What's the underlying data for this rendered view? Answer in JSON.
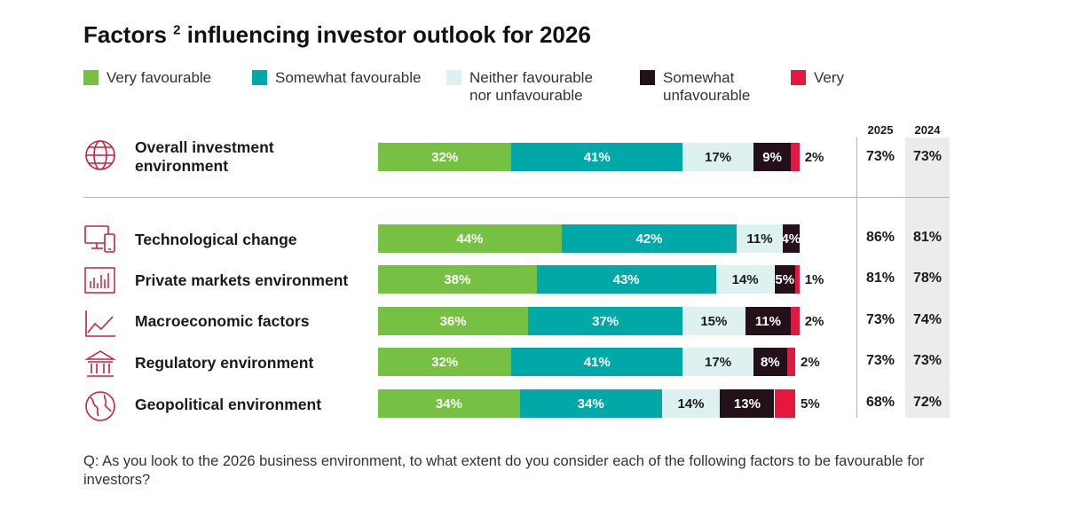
{
  "title": {
    "main": "Factors",
    "sup": "2",
    "rest": "influencing investor outlook for 2026"
  },
  "legend": [
    {
      "label": "Very favourable",
      "color": "#76c043"
    },
    {
      "label": "Somewhat favourable",
      "color": "#00a9a7"
    },
    {
      "label": "Neither favourable\nnor unfavourable",
      "color": "#ddf1f1"
    },
    {
      "label": "Somewhat\nunfavourable",
      "color": "#231018"
    },
    {
      "label": "Very",
      "color": "#e5173f"
    }
  ],
  "column_headers": {
    "y2025": "2025",
    "y2024": "2024"
  },
  "rows": [
    {
      "label": "Overall investment\nenvironment",
      "icon": "globe-icon",
      "y2025": "73%",
      "y2024": "73%"
    },
    {
      "label": "Technological change",
      "icon": "devices-icon",
      "y2025": "86%",
      "y2024": "81%"
    },
    {
      "label": "Private markets environment",
      "icon": "bar-chart-icon",
      "y2025": "81%",
      "y2024": "78%"
    },
    {
      "label": "Macroeconomic factors",
      "icon": "line-chart-icon",
      "y2025": "73%",
      "y2024": "74%"
    },
    {
      "label": "Regulatory environment",
      "icon": "bank-icon",
      "y2025": "73%",
      "y2024": "73%"
    },
    {
      "label": "Geopolitical environment",
      "icon": "world-map-icon",
      "y2025": "68%",
      "y2024": "72%"
    }
  ],
  "chart_data": {
    "type": "bar",
    "orientation": "horizontal",
    "stacked": true,
    "title": "Factors ² influencing investor outlook for 2026",
    "categories": [
      "Overall investment environment",
      "Technological change",
      "Private markets environment",
      "Macroeconomic factors",
      "Regulatory environment",
      "Geopolitical environment"
    ],
    "series": [
      {
        "name": "Very favourable",
        "color": "#76c043",
        "values": [
          32,
          44,
          38,
          36,
          32,
          34
        ]
      },
      {
        "name": "Somewhat favourable",
        "color": "#00a9a7",
        "values": [
          41,
          42,
          43,
          37,
          41,
          34
        ]
      },
      {
        "name": "Neither favourable nor unfavourable",
        "color": "#ddf1f1",
        "values": [
          17,
          11,
          14,
          15,
          17,
          14
        ]
      },
      {
        "name": "Somewhat unfavourable",
        "color": "#231018",
        "values": [
          9,
          4,
          5,
          11,
          8,
          13
        ]
      },
      {
        "name": "Very",
        "color": "#e5173f",
        "values": [
          2,
          0,
          1,
          2,
          2,
          5
        ]
      }
    ],
    "data_labels": [
      [
        "32%",
        "41%",
        "17%",
        "9%",
        "2%"
      ],
      [
        "44%",
        "42%",
        "11%",
        "4%",
        ""
      ],
      [
        "38%",
        "43%",
        "14%",
        "5%",
        "1%"
      ],
      [
        "36%",
        "37%",
        "15%",
        "11%",
        "2%"
      ],
      [
        "32%",
        "41%",
        "17%",
        "8%",
        "2%"
      ],
      [
        "34%",
        "34%",
        "14%",
        "13%",
        "5%"
      ]
    ],
    "label_colors": [
      "#ffffff",
      "#ffffff",
      "#1a1a1a",
      "#ffffff",
      "#1a1a1a"
    ],
    "xlim": [
      0,
      100
    ]
  },
  "footnote": "Q: As you look to the 2026 business environment, to what extent do you consider each of the following factors to be favourable for investors?"
}
